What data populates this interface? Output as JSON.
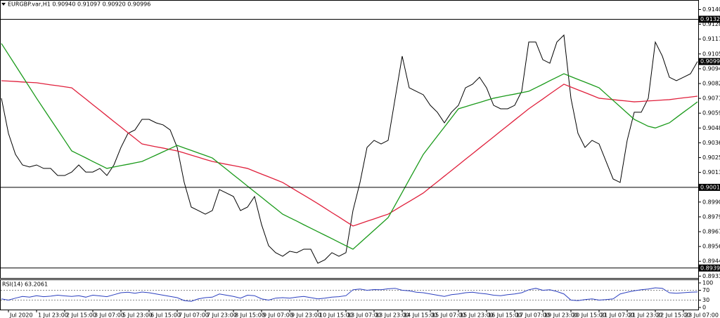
{
  "header": "EURGBP.var,H1 0.90940 0.91097 0.90920 0.90996",
  "chart_data": [
    {
      "type": "line",
      "categories": [
        null,
        "Jul 2020",
        null,
        null,
        null,
        "1 Jul 23:00",
        null,
        null,
        null,
        "2 Jul 15:00",
        null,
        null,
        null,
        "3 Jul 07:00",
        null,
        null,
        null,
        "5 Jul 23:00",
        null,
        null,
        null,
        "6 Jul 15:00",
        null,
        null,
        null,
        "7 Jul 07:00",
        null,
        null,
        null,
        "7 Jul 23:00",
        null,
        null,
        null,
        "8 Jul 15:00",
        null,
        null,
        null,
        "9 Jul 07:00",
        null,
        null,
        null,
        "9 Jul 23:00",
        null,
        null,
        null,
        "10 Jul 15:00",
        null,
        null,
        null,
        "13 Jul 07:00",
        null,
        null,
        null,
        "13 Jul 23:00",
        null,
        null,
        null,
        "14 Jul 15:00",
        null,
        null,
        null,
        "15 Jul 07:00",
        null,
        null,
        null,
        "15 Jul 23:00",
        null,
        null,
        null,
        "16 Jul 15:00",
        null,
        null,
        null,
        "17 Jul 07:00",
        null,
        null,
        null,
        "19 Jul 23:00",
        null,
        null,
        null,
        "20 Jul 15:00",
        null,
        null,
        null,
        "21 Jul 07:00",
        null,
        null,
        null,
        "21 Jul 23:00",
        null,
        null,
        null,
        "22 Jul 15:00",
        null,
        null,
        null,
        "23 Jul 07:00",
        null,
        null
      ],
      "series": [
        {
          "color": "#000000",
          "values": [
            0.90711,
            0.90438,
            0.90275,
            0.90193,
            0.90177,
            0.90193,
            0.90166,
            0.90166,
            0.90111,
            0.90111,
            0.90138,
            0.90193,
            0.90138,
            0.90138,
            0.90166,
            0.90111,
            0.90193,
            0.90329,
            0.90438,
            0.90465,
            0.90547,
            0.90547,
            0.9052,
            0.90504,
            0.90465,
            0.90329,
            0.90057,
            0.89866,
            0.89839,
            0.89811,
            0.89839,
            0.90002,
            0.89975,
            0.89948,
            0.89839,
            0.89866,
            0.89948,
            0.8973,
            0.89566,
            0.89512,
            0.89484,
            0.89523,
            0.89512,
            0.89539,
            0.89539,
            0.8943,
            0.89457,
            0.89512,
            0.89484,
            0.89512,
            0.89839,
            0.90057,
            0.90329,
            0.90384,
            0.90356,
            0.90384,
            0.90711,
            0.91038,
            0.90792,
            0.90765,
            0.90738,
            0.90656,
            0.90602,
            0.9052,
            0.90602,
            0.90656,
            0.90792,
            0.9082,
            0.90874,
            0.90792,
            0.90656,
            0.90629,
            0.90629,
            0.90656,
            0.90765,
            0.91147,
            0.91147,
            0.9101,
            0.90983,
            0.91147,
            0.91201,
            0.90711,
            0.90438,
            0.90329,
            0.90384,
            0.90356,
            0.9022,
            0.90084,
            0.90057,
            0.90384,
            0.90602,
            0.90602,
            0.90711,
            0.91147,
            0.91038,
            0.90874,
            0.90847,
            0.90874,
            0.90901,
            0.90996
          ]
        },
        {
          "color": "#e0203c",
          "values": [
            0.90847,
            0.90844,
            0.90841,
            0.90837,
            0.90834,
            0.90831,
            0.90823,
            0.90815,
            0.90808,
            0.908,
            0.90792,
            0.90748,
            0.90705,
            0.90661,
            0.90618,
            0.90574,
            0.9053,
            0.90487,
            0.90443,
            0.904,
            0.90356,
            0.90345,
            0.90334,
            0.90324,
            0.90313,
            0.90302,
            0.90286,
            0.90269,
            0.90253,
            0.90236,
            0.9022,
            0.90209,
            0.90198,
            0.90188,
            0.90177,
            0.90166,
            0.90144,
            0.90122,
            0.90101,
            0.90079,
            0.90057,
            0.90024,
            0.89991,
            0.89959,
            0.89926,
            0.89893,
            0.89858,
            0.89823,
            0.89789,
            0.89754,
            0.89719,
            0.89737,
            0.89756,
            0.89774,
            0.89793,
            0.89811,
            0.89844,
            0.89877,
            0.89909,
            0.89942,
            0.89975,
            0.90019,
            0.90062,
            0.90106,
            0.90149,
            0.90193,
            0.90237,
            0.9028,
            0.90324,
            0.90367,
            0.90411,
            0.90455,
            0.90498,
            0.90542,
            0.90585,
            0.90629,
            0.90667,
            0.90705,
            0.90744,
            0.90782,
            0.9082,
            0.90798,
            0.90776,
            0.90755,
            0.90733,
            0.90711,
            0.90705,
            0.907,
            0.90694,
            0.90689,
            0.90683,
            0.90686,
            0.9069,
            0.90693,
            0.90697,
            0.907,
            0.90707,
            0.90714,
            0.9072,
            0.90727
          ]
        },
        {
          "color": "#1a9a1a",
          "values": [
            0.91136,
            0.91051,
            0.90966,
            0.90881,
            0.90796,
            0.90711,
            0.90629,
            0.90547,
            0.90466,
            0.90384,
            0.90302,
            0.90275,
            0.90248,
            0.9022,
            0.90193,
            0.90166,
            0.90177,
            0.90188,
            0.90198,
            0.90209,
            0.9022,
            0.90245,
            0.9027,
            0.90295,
            0.9032,
            0.90345,
            0.90325,
            0.90306,
            0.90286,
            0.90267,
            0.90247,
            0.90203,
            0.9016,
            0.90116,
            0.90073,
            0.90029,
            0.89985,
            0.89942,
            0.89898,
            0.89855,
            0.89811,
            0.89784,
            0.89757,
            0.89729,
            0.89702,
            0.89675,
            0.89648,
            0.89621,
            0.89593,
            0.89566,
            0.89539,
            0.89588,
            0.89637,
            0.89686,
            0.89735,
            0.89784,
            0.89882,
            0.8998,
            0.90079,
            0.90177,
            0.90275,
            0.90346,
            0.90417,
            0.90487,
            0.90558,
            0.90629,
            0.90645,
            0.90662,
            0.90678,
            0.90695,
            0.90711,
            0.90722,
            0.90733,
            0.90743,
            0.90754,
            0.90765,
            0.90792,
            0.90819,
            0.90847,
            0.90874,
            0.90901,
            0.90879,
            0.90857,
            0.90836,
            0.90814,
            0.90792,
            0.90743,
            0.90694,
            0.90645,
            0.90596,
            0.90547,
            0.9052,
            0.90493,
            0.9048,
            0.905,
            0.9052,
            0.90561,
            0.90602,
            0.90642,
            0.90683
          ]
        }
      ],
      "ylim": [
        0.8931,
        0.9143
      ],
      "yticks": [
        {
          "value": 0.914,
          "label": "0.91400"
        },
        0.91285,
        {
          "value": 0.9117,
          "label": "0.91170"
        },
        0.91055,
        {
          "value": 0.9094,
          "label": "0.90940"
        },
        0.90825,
        {
          "value": 0.9071,
          "label": "0.90710"
        },
        0.90595,
        {
          "value": 0.9048,
          "label": "0.90480"
        },
        0.90365,
        {
          "value": 0.9025,
          "label": "0.90250"
        },
        0.90135,
        0.89905,
        {
          "value": 0.8979,
          "label": "0.89790"
        },
        0.89675,
        {
          "value": 0.8956,
          "label": "0.89560"
        },
        0.89445,
        {
          "value": 0.8933,
          "label": "0.89330"
        }
      ],
      "levels": [
        0.91324,
        0.90019,
        0.89393
      ],
      "last_price": 0.90996
    },
    {
      "type": "line",
      "title": "RSI(14) 63.2061",
      "series": [
        {
          "color": "#2b3fbf",
          "values": [
            35,
            30,
            38,
            45,
            42,
            48,
            44,
            46,
            50,
            47,
            45,
            48,
            42,
            50,
            47,
            44,
            52,
            60,
            62,
            58,
            63,
            60,
            55,
            50,
            45,
            40,
            28,
            25,
            35,
            40,
            42,
            55,
            50,
            45,
            38,
            50,
            48,
            35,
            30,
            38,
            40,
            38,
            42,
            45,
            40,
            35,
            38,
            42,
            44,
            48,
            72,
            75,
            70,
            73,
            72,
            76,
            78,
            70,
            68,
            62,
            60,
            55,
            50,
            45,
            52,
            55,
            60,
            62,
            58,
            55,
            50,
            48,
            52,
            55,
            60,
            72,
            78,
            70,
            72,
            65,
            55,
            30,
            28,
            32,
            35,
            30,
            32,
            35,
            55,
            62,
            68,
            72,
            75,
            80,
            78,
            60,
            58,
            60,
            62,
            63.2061
          ]
        }
      ],
      "ylim": [
        0,
        100
      ],
      "yticks": [
        100,
        70,
        30,
        0
      ]
    }
  ]
}
